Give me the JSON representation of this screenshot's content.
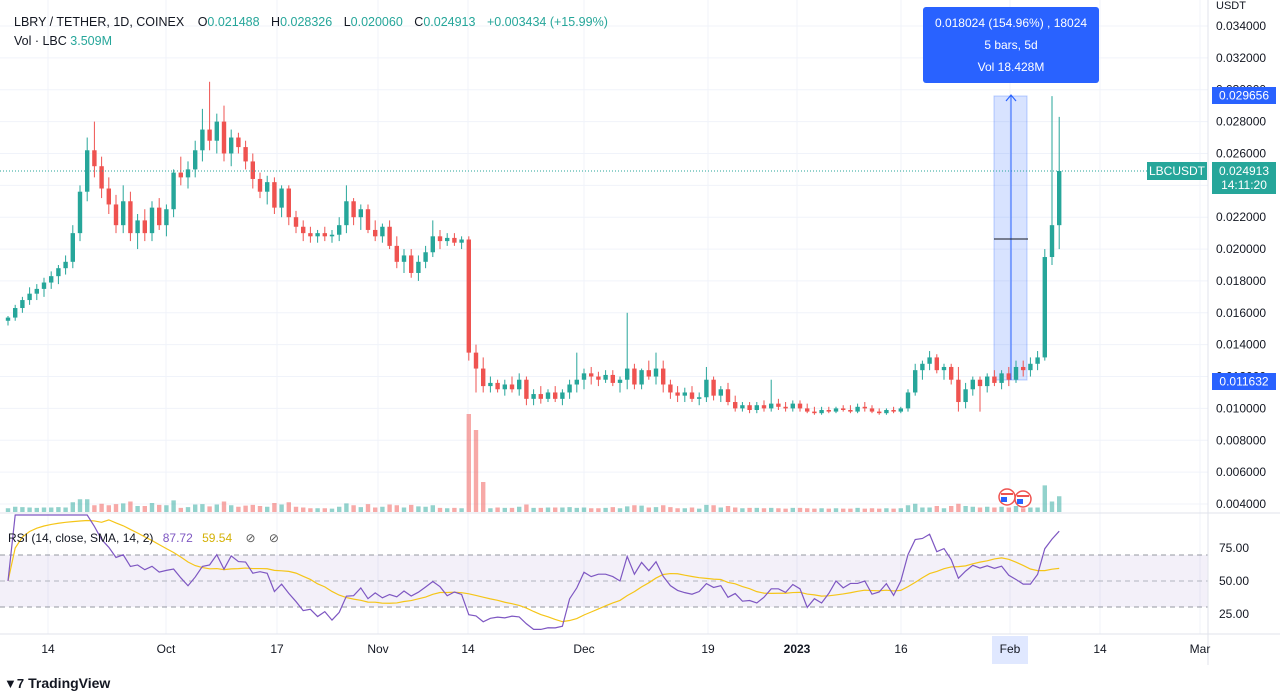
{
  "legend": {
    "symbol": "LBRY / TETHER, 1D, COINEX",
    "open_label": "O",
    "open": "0.021488",
    "high_label": "H",
    "high": "0.028326",
    "low_label": "L",
    "low": "0.020060",
    "close_label": "C",
    "close": "0.024913",
    "change": "+0.003434 (+15.99%)",
    "vol_label": "Vol · LBC",
    "vol": "3.509M"
  },
  "rsi_legend": {
    "label": "RSI (14, close, SMA, 14, 2)",
    "rsi": "87.72",
    "sma": "59.54",
    "eye1": "⊘",
    "eye2": "⊘"
  },
  "tooltip": {
    "line1": "0.018024 (154.96%) , 18024",
    "line2": "5 bars, 5d",
    "line3": "Vol 18.428M"
  },
  "price_axis": {
    "unit": "USDT",
    "ticks": [
      "0.034000",
      "0.032000",
      "0.030000",
      "0.028000",
      "0.026000",
      "0.024000",
      "0.022000",
      "0.020000",
      "0.018000",
      "0.016000",
      "0.014000",
      "0.012000",
      "0.010000",
      "0.008000",
      "0.006000",
      "0.004000"
    ],
    "top_marker": "0.029656",
    "bottom_marker": "0.011632",
    "symbol_tag": "LBCUSDT",
    "last_price": "0.024913",
    "countdown": "14:11:20"
  },
  "rsi_axis": {
    "ticks": [
      "75.00",
      "50.00",
      "25.00"
    ]
  },
  "time_axis": {
    "labels": [
      "14",
      "Oct",
      "17",
      "Nov",
      "14",
      "Dec",
      "19",
      "2023",
      "16",
      "Feb",
      "14",
      "Mar"
    ],
    "highlight": "Feb"
  },
  "brand": {
    "logo": "▼7",
    "name": "TradingView"
  },
  "colors": {
    "up": "#26a69a",
    "down": "#ef5350",
    "rsi": "#7e57c2",
    "rsi_sma": "#f5c518",
    "accent": "#2962ff"
  },
  "chart_data": {
    "type": "candlestick",
    "title": "LBRY / TETHER, 1D, COINEX",
    "ylim": [
      0.0035,
      0.035
    ],
    "series": [
      {
        "name": "price",
        "candles": [
          [
            0.0155,
            0.0158,
            0.0152,
            0.0157
          ],
          [
            0.0157,
            0.0165,
            0.0155,
            0.0163
          ],
          [
            0.0163,
            0.017,
            0.016,
            0.0168
          ],
          [
            0.0168,
            0.0176,
            0.0165,
            0.0172
          ],
          [
            0.0172,
            0.0178,
            0.0168,
            0.0175
          ],
          [
            0.0175,
            0.0182,
            0.017,
            0.0179
          ],
          [
            0.0179,
            0.0186,
            0.0175,
            0.0183
          ],
          [
            0.0183,
            0.019,
            0.0178,
            0.0188
          ],
          [
            0.0188,
            0.0196,
            0.0184,
            0.0192
          ],
          [
            0.0192,
            0.0215,
            0.0188,
            0.021
          ],
          [
            0.021,
            0.024,
            0.0205,
            0.0236
          ],
          [
            0.0236,
            0.027,
            0.023,
            0.0262
          ],
          [
            0.0262,
            0.028,
            0.0245,
            0.0252
          ],
          [
            0.0252,
            0.0258,
            0.0232,
            0.0238
          ],
          [
            0.0238,
            0.0245,
            0.0222,
            0.0228
          ],
          [
            0.0228,
            0.0234,
            0.021,
            0.0215
          ],
          [
            0.0215,
            0.024,
            0.021,
            0.023
          ],
          [
            0.023,
            0.0236,
            0.0205,
            0.021
          ],
          [
            0.021,
            0.0222,
            0.02,
            0.0218
          ],
          [
            0.0218,
            0.0225,
            0.0205,
            0.021
          ],
          [
            0.021,
            0.023,
            0.0205,
            0.0226
          ],
          [
            0.0226,
            0.0232,
            0.0212,
            0.0215
          ],
          [
            0.0215,
            0.0228,
            0.0208,
            0.0225
          ],
          [
            0.0225,
            0.025,
            0.022,
            0.0248
          ],
          [
            0.0248,
            0.0258,
            0.024,
            0.0245
          ],
          [
            0.0245,
            0.0255,
            0.0238,
            0.025
          ],
          [
            0.025,
            0.0268,
            0.0245,
            0.0262
          ],
          [
            0.0262,
            0.0288,
            0.0255,
            0.0275
          ],
          [
            0.0275,
            0.0305,
            0.0262,
            0.0268
          ],
          [
            0.0268,
            0.0285,
            0.026,
            0.028
          ],
          [
            0.028,
            0.029,
            0.0255,
            0.026
          ],
          [
            0.026,
            0.0275,
            0.0252,
            0.027
          ],
          [
            0.027,
            0.0273,
            0.026,
            0.0264
          ],
          [
            0.0264,
            0.0268,
            0.025,
            0.0255
          ],
          [
            0.0255,
            0.026,
            0.0238,
            0.0244
          ],
          [
            0.0244,
            0.0248,
            0.0232,
            0.0236
          ],
          [
            0.0236,
            0.0246,
            0.0228,
            0.0242
          ],
          [
            0.0242,
            0.0245,
            0.0222,
            0.0226
          ],
          [
            0.0226,
            0.024,
            0.022,
            0.0238
          ],
          [
            0.0238,
            0.024,
            0.0215,
            0.022
          ],
          [
            0.022,
            0.0224,
            0.021,
            0.0214
          ],
          [
            0.0214,
            0.0218,
            0.0205,
            0.021
          ],
          [
            0.021,
            0.0214,
            0.0204,
            0.0208
          ],
          [
            0.0208,
            0.0212,
            0.0204,
            0.021
          ],
          [
            0.021,
            0.0214,
            0.0205,
            0.0208
          ],
          [
            0.0208,
            0.0212,
            0.0204,
            0.0209
          ],
          [
            0.0209,
            0.022,
            0.0205,
            0.0215
          ],
          [
            0.0215,
            0.024,
            0.021,
            0.023
          ],
          [
            0.023,
            0.0232,
            0.0215,
            0.022
          ],
          [
            0.022,
            0.0228,
            0.0212,
            0.0225
          ],
          [
            0.0225,
            0.0228,
            0.021,
            0.0212
          ],
          [
            0.0212,
            0.0218,
            0.0205,
            0.0208
          ],
          [
            0.0208,
            0.0216,
            0.0204,
            0.0214
          ],
          [
            0.0214,
            0.0218,
            0.02,
            0.0202
          ],
          [
            0.0202,
            0.0208,
            0.0188,
            0.0192
          ],
          [
            0.0192,
            0.02,
            0.0185,
            0.0196
          ],
          [
            0.0196,
            0.02,
            0.0182,
            0.0185
          ],
          [
            0.0185,
            0.0196,
            0.018,
            0.0192
          ],
          [
            0.0192,
            0.0202,
            0.0188,
            0.0198
          ],
          [
            0.0198,
            0.0218,
            0.0195,
            0.0208
          ],
          [
            0.0208,
            0.0212,
            0.02,
            0.0205
          ],
          [
            0.0205,
            0.021,
            0.0202,
            0.0207
          ],
          [
            0.0207,
            0.021,
            0.0202,
            0.0204
          ],
          [
            0.0204,
            0.0208,
            0.02,
            0.0206
          ],
          [
            0.0206,
            0.0208,
            0.013,
            0.0135
          ],
          [
            0.0135,
            0.014,
            0.011,
            0.0125
          ],
          [
            0.0125,
            0.0132,
            0.011,
            0.0114
          ],
          [
            0.0114,
            0.012,
            0.011,
            0.0116
          ],
          [
            0.0116,
            0.0118,
            0.011,
            0.0112
          ],
          [
            0.0112,
            0.0118,
            0.0108,
            0.0115
          ],
          [
            0.0115,
            0.012,
            0.011,
            0.0112
          ],
          [
            0.0112,
            0.0122,
            0.0108,
            0.0118
          ],
          [
            0.0118,
            0.012,
            0.0102,
            0.0106
          ],
          [
            0.0106,
            0.0112,
            0.0102,
            0.0109
          ],
          [
            0.0109,
            0.0114,
            0.0103,
            0.0106
          ],
          [
            0.0106,
            0.0112,
            0.0104,
            0.011
          ],
          [
            0.011,
            0.0114,
            0.0104,
            0.0106
          ],
          [
            0.0106,
            0.0112,
            0.0102,
            0.011
          ],
          [
            0.011,
            0.0118,
            0.0106,
            0.0115
          ],
          [
            0.0115,
            0.0135,
            0.011,
            0.0118
          ],
          [
            0.0118,
            0.0125,
            0.0112,
            0.0122
          ],
          [
            0.0122,
            0.0126,
            0.0115,
            0.012
          ],
          [
            0.012,
            0.0123,
            0.0114,
            0.0118
          ],
          [
            0.0118,
            0.0124,
            0.0116,
            0.0121
          ],
          [
            0.0121,
            0.0124,
            0.0114,
            0.0116
          ],
          [
            0.0116,
            0.012,
            0.011,
            0.0118
          ],
          [
            0.0118,
            0.016,
            0.0112,
            0.0125
          ],
          [
            0.0125,
            0.0128,
            0.0112,
            0.0115
          ],
          [
            0.0115,
            0.0125,
            0.0112,
            0.0124
          ],
          [
            0.0124,
            0.013,
            0.0118,
            0.012
          ],
          [
            0.012,
            0.0135,
            0.0115,
            0.0125
          ],
          [
            0.0125,
            0.013,
            0.011,
            0.0115
          ],
          [
            0.0115,
            0.0118,
            0.0106,
            0.011
          ],
          [
            0.011,
            0.0114,
            0.0104,
            0.0108
          ],
          [
            0.0108,
            0.0113,
            0.0104,
            0.011
          ],
          [
            0.011,
            0.0114,
            0.0104,
            0.0106
          ],
          [
            0.0106,
            0.011,
            0.0102,
            0.0107
          ],
          [
            0.0107,
            0.0126,
            0.0104,
            0.0118
          ],
          [
            0.0118,
            0.012,
            0.0105,
            0.0108
          ],
          [
            0.0108,
            0.0114,
            0.0104,
            0.0112
          ],
          [
            0.0112,
            0.0116,
            0.0102,
            0.0104
          ],
          [
            0.0104,
            0.0108,
            0.0098,
            0.01
          ],
          [
            0.01,
            0.0104,
            0.0098,
            0.0102
          ],
          [
            0.0102,
            0.0104,
            0.0097,
            0.0099
          ],
          [
            0.0099,
            0.0104,
            0.0097,
            0.0102
          ],
          [
            0.0102,
            0.0105,
            0.0098,
            0.01
          ],
          [
            0.01,
            0.0118,
            0.0098,
            0.0103
          ],
          [
            0.0103,
            0.0106,
            0.0099,
            0.0101
          ],
          [
            0.0101,
            0.0104,
            0.0098,
            0.01
          ],
          [
            0.01,
            0.0105,
            0.0098,
            0.0103
          ],
          [
            0.0103,
            0.0105,
            0.0098,
            0.01
          ],
          [
            0.01,
            0.0103,
            0.0097,
            0.0098
          ],
          [
            0.0098,
            0.0101,
            0.0096,
            0.0097
          ],
          [
            0.0097,
            0.0101,
            0.0096,
            0.0099
          ],
          [
            0.0099,
            0.0101,
            0.0097,
            0.0098
          ],
          [
            0.0098,
            0.0101,
            0.0097,
            0.01
          ],
          [
            0.01,
            0.0102,
            0.0098,
            0.0099
          ],
          [
            0.0099,
            0.0102,
            0.0097,
            0.0098
          ],
          [
            0.0098,
            0.0103,
            0.0097,
            0.0101
          ],
          [
            0.0101,
            0.0104,
            0.0098,
            0.01
          ],
          [
            0.01,
            0.0102,
            0.0097,
            0.0098
          ],
          [
            0.0098,
            0.01,
            0.0096,
            0.0097
          ],
          [
            0.0097,
            0.01,
            0.0096,
            0.0099
          ],
          [
            0.0099,
            0.0101,
            0.0097,
            0.0098
          ],
          [
            0.0098,
            0.0101,
            0.0097,
            0.01
          ],
          [
            0.01,
            0.0112,
            0.0098,
            0.011
          ],
          [
            0.011,
            0.0128,
            0.0108,
            0.0124
          ],
          [
            0.0124,
            0.013,
            0.0118,
            0.0128
          ],
          [
            0.0128,
            0.0136,
            0.0124,
            0.0132
          ],
          [
            0.0132,
            0.0134,
            0.0122,
            0.0124
          ],
          [
            0.0124,
            0.0128,
            0.0118,
            0.0126
          ],
          [
            0.0126,
            0.0128,
            0.0115,
            0.0118
          ],
          [
            0.0118,
            0.0126,
            0.0098,
            0.0104
          ],
          [
            0.0104,
            0.0116,
            0.01,
            0.0112
          ],
          [
            0.0112,
            0.012,
            0.0108,
            0.0118
          ],
          [
            0.0118,
            0.012,
            0.0098,
            0.0114
          ],
          [
            0.0114,
            0.0122,
            0.011,
            0.012
          ],
          [
            0.012,
            0.0124,
            0.0114,
            0.0116
          ],
          [
            0.0116,
            0.0124,
            0.0112,
            0.0122
          ],
          [
            0.0122,
            0.0126,
            0.0114,
            0.0118
          ],
          [
            0.0118,
            0.013,
            0.0116,
            0.0126
          ],
          [
            0.0126,
            0.013,
            0.012,
            0.0124
          ],
          [
            0.0124,
            0.0132,
            0.012,
            0.0128
          ],
          [
            0.0128,
            0.0136,
            0.0124,
            0.0132
          ],
          [
            0.0132,
            0.02,
            0.013,
            0.0195
          ],
          [
            0.0195,
            0.0296,
            0.019,
            0.0215
          ],
          [
            0.0215,
            0.0283,
            0.02,
            0.0249
          ]
        ]
      }
    ]
  }
}
